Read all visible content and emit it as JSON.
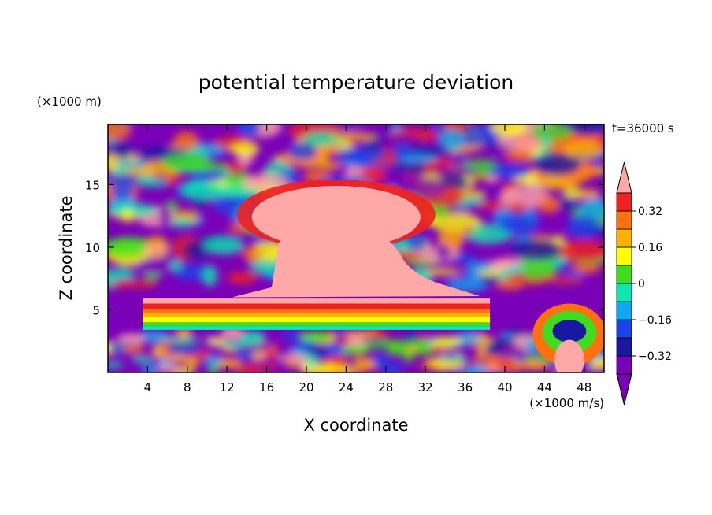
{
  "chart_data": {
    "type": "heatmap",
    "title": "potential temperature deviation",
    "xlabel": "X coordinate",
    "ylabel": "Z coordinate",
    "x_unit": "(×1000 m/s)",
    "y_unit": "(×1000 m)",
    "time_label": "t=36000 s",
    "xlim": [
      0,
      50
    ],
    "ylim": [
      0,
      19.8
    ],
    "x_ticks": [
      4,
      8,
      12,
      16,
      20,
      24,
      28,
      32,
      36,
      40,
      44,
      48
    ],
    "y_ticks": [
      5,
      10,
      15
    ],
    "colorbar": {
      "levels": [
        -0.4,
        -0.32,
        -0.24,
        -0.16,
        -0.08,
        0,
        0.08,
        0.16,
        0.24,
        0.32,
        0.4
      ],
      "colors": [
        "#7a00b8",
        "#1818a0",
        "#1a44e8",
        "#10a8f0",
        "#10e6b0",
        "#40dc20",
        "#ffff00",
        "#ffb000",
        "#ff7010",
        "#f02020",
        "#ffa8a8"
      ],
      "tick_labels": [
        "0.32",
        "0.16",
        "0",
        "−0.16",
        "−0.32"
      ],
      "tick_values": [
        0.32,
        0.16,
        0,
        -0.16,
        -0.32
      ],
      "extend": "both"
    }
  }
}
